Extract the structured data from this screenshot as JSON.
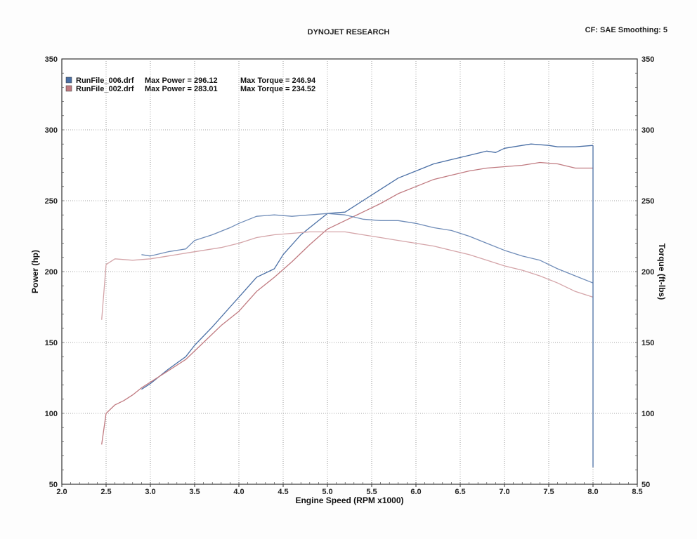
{
  "header": {
    "title": "DYNOJET RESEARCH",
    "settings": "CF: SAE  Smoothing: 5"
  },
  "chart_data": {
    "type": "line",
    "title": "DYNOJET RESEARCH",
    "xlabel": "Engine Speed (RPM x1000)",
    "ylabel": "Power (hp)",
    "y2label": "Torque (ft-lbs)",
    "xlim": [
      2.0,
      8.5
    ],
    "ylim": [
      50,
      350
    ],
    "y2lim": [
      50,
      350
    ],
    "x_ticks": [
      "2.0",
      "2.5",
      "3.0",
      "3.5",
      "4.0",
      "4.5",
      "5.0",
      "5.5",
      "6.0",
      "6.5",
      "7.0",
      "7.5",
      "8.0",
      "8.5"
    ],
    "y_ticks": [
      "50",
      "100",
      "150",
      "200",
      "250",
      "300",
      "350"
    ],
    "y2_ticks": [
      "50",
      "100",
      "150",
      "200",
      "250",
      "300",
      "350"
    ],
    "grid": true,
    "legend_position": "top-left",
    "legend": [
      {
        "run": "RunFile_006.drf",
        "power_text": "Max Power = 296.12",
        "torque_text": "Max Torque = 246.94",
        "color": "#4a6fa5"
      },
      {
        "run": "RunFile_002.drf",
        "power_text": "Max Power = 283.01",
        "torque_text": "Max Torque = 234.52",
        "color": "#c07a80"
      }
    ],
    "series": [
      {
        "name": "RunFile_006.drf Power",
        "axis": "left",
        "color": "#4a6fa5",
        "x": [
          2.9,
          3.0,
          3.2,
          3.4,
          3.5,
          3.7,
          3.9,
          4.0,
          4.2,
          4.4,
          4.5,
          4.7,
          4.9,
          5.0,
          5.2,
          5.4,
          5.6,
          5.8,
          6.0,
          6.2,
          6.4,
          6.6,
          6.8,
          6.9,
          7.0,
          7.2,
          7.3,
          7.5,
          7.6,
          7.8,
          8.0
        ],
        "y": [
          117,
          121,
          131,
          140,
          148,
          161,
          175,
          182,
          196,
          202,
          212,
          226,
          236,
          241,
          242,
          250,
          258,
          266,
          271,
          276,
          279,
          282,
          285,
          284,
          287,
          289,
          290,
          289,
          288,
          288,
          289
        ]
      },
      {
        "name": "RunFile_002.drf Power",
        "axis": "left",
        "color": "#c07a80",
        "x": [
          2.45,
          2.5,
          2.6,
          2.7,
          2.8,
          2.9,
          3.0,
          3.2,
          3.4,
          3.6,
          3.8,
          4.0,
          4.2,
          4.4,
          4.6,
          4.8,
          5.0,
          5.2,
          5.4,
          5.6,
          5.8,
          6.0,
          6.2,
          6.4,
          6.6,
          6.8,
          7.0,
          7.2,
          7.4,
          7.6,
          7.8,
          8.0
        ],
        "y": [
          78,
          100,
          106,
          109,
          113,
          118,
          122,
          130,
          138,
          150,
          162,
          172,
          186,
          196,
          207,
          219,
          230,
          236,
          242,
          248,
          255,
          260,
          265,
          268,
          271,
          273,
          274,
          275,
          277,
          276,
          273,
          273
        ]
      },
      {
        "name": "RunFile_006.drf Torque",
        "axis": "right",
        "color": "#6f8cb8",
        "x": [
          2.9,
          3.0,
          3.2,
          3.4,
          3.5,
          3.7,
          3.9,
          4.0,
          4.2,
          4.4,
          4.6,
          4.8,
          5.0,
          5.2,
          5.4,
          5.6,
          5.8,
          6.0,
          6.2,
          6.4,
          6.6,
          6.8,
          7.0,
          7.2,
          7.4,
          7.6,
          7.8,
          8.0
        ],
        "y": [
          212,
          211,
          214,
          216,
          222,
          226,
          231,
          234,
          239,
          240,
          239,
          240,
          241,
          240,
          237,
          236,
          236,
          234,
          231,
          229,
          225,
          220,
          215,
          211,
          208,
          202,
          197,
          192
        ]
      },
      {
        "name": "RunFile_002.drf Torque",
        "axis": "right",
        "color": "#d4a4a8",
        "x": [
          2.45,
          2.5,
          2.6,
          2.8,
          3.0,
          3.2,
          3.4,
          3.6,
          3.8,
          4.0,
          4.2,
          4.4,
          4.6,
          4.8,
          5.0,
          5.2,
          5.4,
          5.6,
          5.8,
          6.0,
          6.2,
          6.4,
          6.6,
          6.8,
          7.0,
          7.2,
          7.4,
          7.6,
          7.8,
          8.0
        ],
        "y": [
          166,
          205,
          209,
          208,
          209,
          211,
          213,
          215,
          217,
          220,
          224,
          226,
          227,
          228,
          228,
          228,
          226,
          224,
          222,
          220,
          218,
          215,
          212,
          208,
          204,
          201,
          197,
          192,
          186,
          182
        ]
      }
    ]
  }
}
